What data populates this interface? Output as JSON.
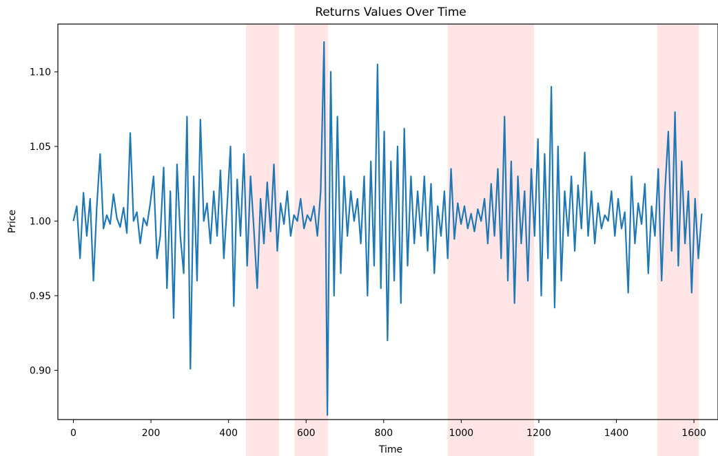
{
  "chart_data": {
    "type": "line",
    "title": "Returns Values Over Time",
    "xlabel": "Time",
    "ylabel": "Price",
    "xlim": [
      -40,
      1662
    ],
    "ylim": [
      0.867,
      1.132
    ],
    "xticks": [
      0,
      200,
      400,
      600,
      800,
      1000,
      1200,
      1400,
      1600
    ],
    "yticks": [
      0.9,
      0.95,
      1.0,
      1.05,
      1.1
    ],
    "ytick_labels": [
      "0.90",
      "0.95",
      "1.00",
      "1.05",
      "1.10"
    ],
    "grid": false,
    "line_color": "#1f77b4",
    "shaded_color": "#ffdcdc",
    "shaded_regions": [
      {
        "start": 445,
        "end": 530
      },
      {
        "start": 570,
        "end": 657
      },
      {
        "start": 965,
        "end": 1188
      },
      {
        "start": 1505,
        "end": 1613
      }
    ],
    "series": [
      {
        "x_start": 0,
        "x_end": 1620,
        "values": [
          1.0,
          1.01,
          0.975,
          1.019,
          0.99,
          1.015,
          0.96,
          1.01,
          1.045,
          0.995,
          1.004,
          0.998,
          1.018,
          1.002,
          0.996,
          1.009,
          0.992,
          1.059,
          1.0,
          1.006,
          0.985,
          1.002,
          0.997,
          1.012,
          1.03,
          0.975,
          0.99,
          1.036,
          0.955,
          1.02,
          0.935,
          1.038,
          0.99,
          0.965,
          1.07,
          0.901,
          1.03,
          0.96,
          1.068,
          1.0,
          1.012,
          0.985,
          1.02,
          0.99,
          1.034,
          0.975,
          1.01,
          1.05,
          0.943,
          1.028,
          0.99,
          1.045,
          0.97,
          1.03,
          0.995,
          0.955,
          1.015,
          0.985,
          1.026,
          0.993,
          1.038,
          0.98,
          1.012,
          0.998,
          1.02,
          0.99,
          1.004,
          1.0,
          1.015,
          0.995,
          1.004,
          1.0,
          1.01,
          0.99,
          1.02,
          1.12,
          0.87,
          1.1,
          0.95,
          1.07,
          0.965,
          1.03,
          0.99,
          1.02,
          1.0,
          1.015,
          0.985,
          1.03,
          0.95,
          1.04,
          0.97,
          1.105,
          0.955,
          1.06,
          0.92,
          1.04,
          0.96,
          1.05,
          0.945,
          1.062,
          0.97,
          1.03,
          0.985,
          1.02,
          0.99,
          1.03,
          0.98,
          1.025,
          0.965,
          1.01,
          0.99,
          1.02,
          0.975,
          1.035,
          0.988,
          1.012,
          0.998,
          1.01,
          0.995,
          1.005,
          0.993,
          1.008,
          1.0,
          1.015,
          0.985,
          1.025,
          0.99,
          1.035,
          0.975,
          1.07,
          0.96,
          1.04,
          0.945,
          1.03,
          0.985,
          1.02,
          0.96,
          1.035,
          0.99,
          1.055,
          0.95,
          1.045,
          0.975,
          1.09,
          0.942,
          1.05,
          0.96,
          1.02,
          0.99,
          1.03,
          0.98,
          1.024,
          0.995,
          1.046,
          0.99,
          1.02,
          0.985,
          1.012,
          0.995,
          1.004,
          1.0,
          1.02,
          0.99,
          1.015,
          0.995,
          1.006,
          0.952,
          1.03,
          0.985,
          1.012,
          0.998,
          1.025,
          0.965,
          1.01,
          0.99,
          1.035,
          0.96,
          1.02,
          1.06,
          0.98,
          1.073,
          0.97,
          1.04,
          0.985,
          1.02,
          0.952,
          1.015,
          0.975,
          1.005
        ]
      }
    ]
  }
}
